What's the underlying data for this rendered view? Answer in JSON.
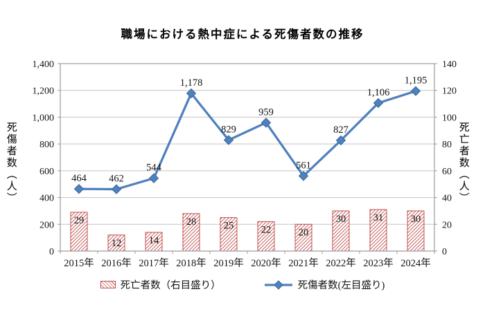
{
  "title": "職場における熱中症による死傷者数の推移",
  "chart_data": {
    "type": "combo",
    "title": "職場における熱中症による死傷者数の推移",
    "categories": [
      "2015年",
      "2016年",
      "2017年",
      "2018年",
      "2019年",
      "2020年",
      "2021年",
      "2022年",
      "2023年",
      "2024年"
    ],
    "series": [
      {
        "name": "死亡者数（右目盛り）",
        "type": "bar",
        "axis": "right",
        "values": [
          29,
          12,
          14,
          28,
          25,
          22,
          20,
          30,
          31,
          30
        ],
        "labels": [
          "29",
          "12",
          "14",
          "28",
          "25",
          "22",
          "20",
          "30",
          "31",
          "30"
        ],
        "color": "#C0504D",
        "fill": "red-diagonal-hatch-on-white"
      },
      {
        "name": "死傷者数(左目盛り)",
        "type": "line",
        "axis": "left",
        "values": [
          464,
          462,
          544,
          1178,
          829,
          959,
          561,
          827,
          1106,
          1195
        ],
        "labels": [
          "464",
          "462",
          "544",
          "1,178",
          "829",
          "959",
          "561",
          "827",
          "1,106",
          "1,195"
        ],
        "color": "#4F81BD",
        "marker": "diamond"
      }
    ],
    "left_axis": {
      "label": "死傷者数（人）",
      "min": 0,
      "max": 1400,
      "step": 200,
      "ticks": [
        "0",
        "200",
        "400",
        "600",
        "800",
        "1,000",
        "1,200",
        "1,400"
      ]
    },
    "right_axis": {
      "label": "死亡者数（人）",
      "min": 0,
      "max": 140,
      "step": 20,
      "ticks": [
        "0",
        "20",
        "40",
        "60",
        "80",
        "100",
        "120",
        "140"
      ]
    },
    "grid": true,
    "legend_position": "bottom",
    "colors": {
      "gridline": "#c3c3c3",
      "axis_border": "#9a9a9a",
      "bar_hatch": "#C0504D",
      "line": "#4F81BD",
      "label_text": "#141414"
    }
  }
}
